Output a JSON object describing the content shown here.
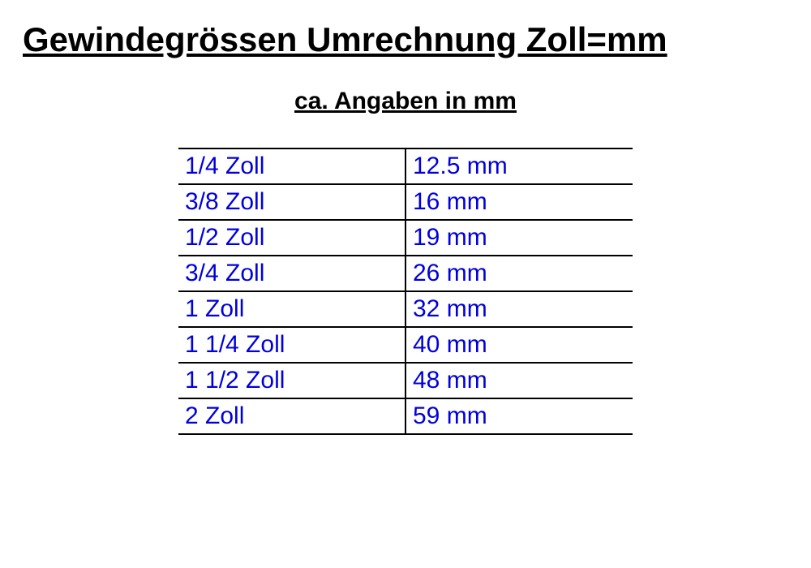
{
  "title": "Gewindegrössen Umrechnung Zoll=mm",
  "subtitle": "ca. Angaben in mm",
  "table": {
    "text_color": "#0000dd",
    "border_color": "#000000",
    "font_size": 30,
    "rows": [
      {
        "zoll": "1/4 Zoll",
        "mm": "12.5 mm"
      },
      {
        "zoll": "3/8 Zoll",
        "mm": "16 mm"
      },
      {
        "zoll": "1/2 Zoll",
        "mm": "19 mm"
      },
      {
        "zoll": "3/4 Zoll",
        "mm": "26 mm"
      },
      {
        "zoll": "1 Zoll",
        "mm": "32 mm"
      },
      {
        "zoll": "1 1/4 Zoll",
        "mm": "40 mm"
      },
      {
        "zoll": "1 1/2 Zoll",
        "mm": "48 mm"
      },
      {
        "zoll": "2 Zoll",
        "mm": "59 mm"
      }
    ]
  }
}
